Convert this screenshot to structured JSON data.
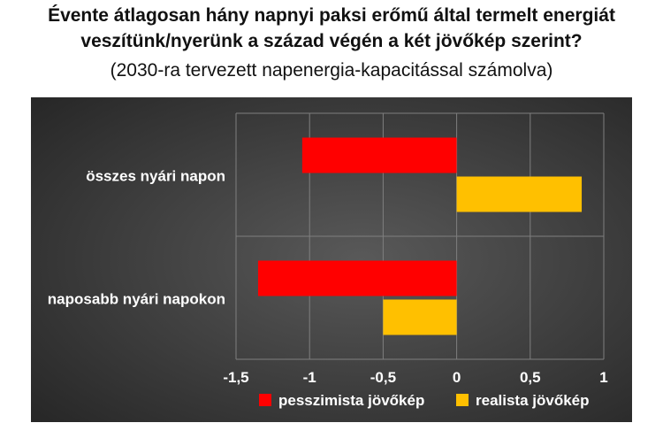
{
  "title_line1": "Évente átlagosan hány napnyi paksi erőmű által termelt energiát",
  "title_line2": "veszítünk/nyerünk a század végén a két jövőkép szerint?",
  "subtitle": "(2030-ra tervezett napenergia-kapacitással számolva)",
  "colors": {
    "panel_dark": "#262626",
    "panel_light": "#595959",
    "grid": "#7f7f7f",
    "tick_text": "#ffffff",
    "pessimist": "#ff0000",
    "realist": "#ffc000"
  },
  "chart_data": {
    "type": "bar",
    "orientation": "horizontal",
    "categories": [
      "összes nyári napon",
      "naposabb nyári napokon"
    ],
    "series": [
      {
        "name": "pesszimista jövőkép",
        "color": "#ff0000",
        "values": [
          -1.05,
          -1.35
        ]
      },
      {
        "name": "realista jövőkép",
        "color": "#ffc000",
        "values": [
          0.85,
          -0.5
        ]
      }
    ],
    "xlim": [
      -1.5,
      1
    ],
    "xticks": [
      -1.5,
      -1,
      -0.5,
      0,
      0.5,
      1
    ],
    "xtick_labels": [
      "-1,5",
      "-1",
      "-0,5",
      "0",
      "0,5",
      "1"
    ],
    "grid": true,
    "legend_position": "bottom"
  }
}
